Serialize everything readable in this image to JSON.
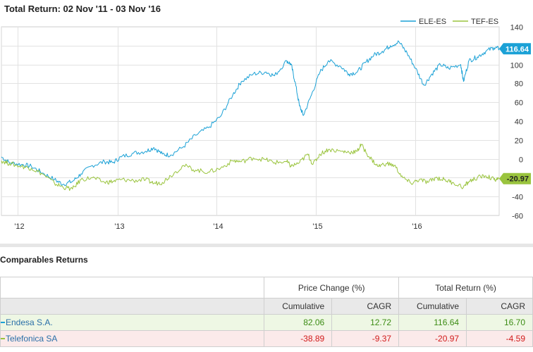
{
  "header": {
    "title": "Total Return: 02 Nov '11 - 03 Nov '16"
  },
  "chart_data": {
    "type": "line",
    "title": "Total Return: 02 Nov '11 - 03 Nov '16",
    "x_tick_labels": [
      "'12",
      "'13",
      "'14",
      "'15",
      "'16"
    ],
    "y_ticks": [
      140,
      120,
      100,
      80,
      60,
      40,
      20,
      0,
      -20,
      -40,
      -60
    ],
    "ylim": [
      -60,
      140
    ],
    "xlim": [
      "2011-11-02",
      "2016-11-03"
    ],
    "grid": true,
    "legend_position": "top-right",
    "series": [
      {
        "name": "ELE-ES",
        "color": "#1ba1d6",
        "last_value_label": "116.64",
        "points": [
          [
            "2011-11-02",
            2
          ],
          [
            "2011-12-01",
            -4
          ],
          [
            "2012-01-15",
            -6
          ],
          [
            "2012-02-20",
            -8
          ],
          [
            "2012-04-01",
            -15
          ],
          [
            "2012-05-15",
            -22
          ],
          [
            "2012-06-15",
            -27
          ],
          [
            "2012-07-20",
            -24
          ],
          [
            "2012-08-20",
            -16
          ],
          [
            "2012-10-01",
            -7
          ],
          [
            "2012-11-15",
            -3
          ],
          [
            "2012-12-15",
            -4
          ],
          [
            "2013-01-15",
            2
          ],
          [
            "2013-03-01",
            6
          ],
          [
            "2013-04-15",
            8
          ],
          [
            "2013-05-15",
            12
          ],
          [
            "2013-06-15",
            5
          ],
          [
            "2013-07-15",
            4
          ],
          [
            "2013-09-01",
            13
          ],
          [
            "2013-10-15",
            25
          ],
          [
            "2013-12-01",
            33
          ],
          [
            "2014-01-15",
            45
          ],
          [
            "2014-03-01",
            68
          ],
          [
            "2014-04-01",
            82
          ],
          [
            "2014-05-15",
            90
          ],
          [
            "2014-07-01",
            92
          ],
          [
            "2014-08-01",
            88
          ],
          [
            "2014-09-15",
            104
          ],
          [
            "2014-10-01",
            100
          ],
          [
            "2014-10-15",
            82
          ],
          [
            "2014-11-01",
            56
          ],
          [
            "2014-11-15",
            46
          ],
          [
            "2014-12-15",
            68
          ],
          [
            "2015-01-15",
            92
          ],
          [
            "2015-02-15",
            104
          ],
          [
            "2015-04-01",
            98
          ],
          [
            "2015-05-01",
            90
          ],
          [
            "2015-06-01",
            92
          ],
          [
            "2015-07-01",
            102
          ],
          [
            "2015-08-01",
            110
          ],
          [
            "2015-09-01",
            114
          ],
          [
            "2015-10-01",
            120
          ],
          [
            "2015-11-01",
            124
          ],
          [
            "2015-12-01",
            112
          ],
          [
            "2016-01-01",
            96
          ],
          [
            "2016-02-01",
            78
          ],
          [
            "2016-03-01",
            90
          ],
          [
            "2016-04-01",
            100
          ],
          [
            "2016-05-01",
            96
          ],
          [
            "2016-06-15",
            100
          ],
          [
            "2016-06-25",
            82
          ],
          [
            "2016-07-15",
            104
          ],
          [
            "2016-08-15",
            108
          ],
          [
            "2016-09-15",
            114
          ],
          [
            "2016-10-15",
            118
          ],
          [
            "2016-11-03",
            116.64
          ]
        ]
      },
      {
        "name": "TEF-ES",
        "color": "#9ac43e",
        "last_value_label": "-20.97",
        "points": [
          [
            "2011-11-02",
            -2
          ],
          [
            "2011-12-01",
            -5
          ],
          [
            "2012-01-15",
            -8
          ],
          [
            "2012-02-20",
            -10
          ],
          [
            "2012-04-01",
            -16
          ],
          [
            "2012-05-15",
            -26
          ],
          [
            "2012-06-15",
            -30
          ],
          [
            "2012-07-20",
            -32
          ],
          [
            "2012-08-20",
            -22
          ],
          [
            "2012-10-01",
            -20
          ],
          [
            "2012-11-15",
            -25
          ],
          [
            "2012-12-15",
            -24
          ],
          [
            "2013-01-15",
            -22
          ],
          [
            "2013-03-01",
            -23
          ],
          [
            "2013-04-15",
            -22
          ],
          [
            "2013-05-15",
            -26
          ],
          [
            "2013-06-15",
            -25
          ],
          [
            "2013-07-15",
            -18
          ],
          [
            "2013-09-01",
            -7
          ],
          [
            "2013-10-15",
            -12
          ],
          [
            "2013-12-01",
            -14
          ],
          [
            "2014-01-15",
            -10
          ],
          [
            "2014-03-01",
            -2
          ],
          [
            "2014-04-01",
            -3
          ],
          [
            "2014-05-15",
            1
          ],
          [
            "2014-07-01",
            -1
          ],
          [
            "2014-08-01",
            -4
          ],
          [
            "2014-09-15",
            -3
          ],
          [
            "2014-10-01",
            -8
          ],
          [
            "2014-11-01",
            -4
          ],
          [
            "2014-12-01",
            5
          ],
          [
            "2014-12-20",
            -6
          ],
          [
            "2015-01-15",
            5
          ],
          [
            "2015-02-15",
            10
          ],
          [
            "2015-04-01",
            8
          ],
          [
            "2015-05-01",
            7
          ],
          [
            "2015-06-01",
            8
          ],
          [
            "2015-06-15",
            15
          ],
          [
            "2015-07-15",
            2
          ],
          [
            "2015-08-15",
            -8
          ],
          [
            "2015-09-15",
            -5
          ],
          [
            "2015-10-15",
            -7
          ],
          [
            "2015-11-15",
            -20
          ],
          [
            "2015-12-15",
            -26
          ],
          [
            "2016-01-15",
            -22
          ],
          [
            "2016-02-15",
            -25
          ],
          [
            "2016-03-15",
            -20
          ],
          [
            "2016-04-15",
            -22
          ],
          [
            "2016-05-15",
            -25
          ],
          [
            "2016-06-25",
            -30
          ],
          [
            "2016-07-15",
            -24
          ],
          [
            "2016-08-15",
            -20
          ],
          [
            "2016-09-15",
            -18
          ],
          [
            "2016-10-15",
            -22
          ],
          [
            "2016-11-03",
            -20.97
          ]
        ]
      }
    ]
  },
  "comparables": {
    "title": "Comparables Returns",
    "group_headers": [
      "Price Change (%)",
      "Total Return (%)"
    ],
    "sub_headers": [
      "Cumulative",
      "CAGR",
      "Cumulative",
      "CAGR"
    ],
    "rows": [
      {
        "name": "Endesa S.A.",
        "color": "#1ba1d6",
        "price_cumulative": "82.06",
        "price_cagr": "12.72",
        "total_cumulative": "116.64",
        "total_cagr": "16.70"
      },
      {
        "name": "Telefonica SA",
        "color": "#9ac43e",
        "price_cumulative": "-38.89",
        "price_cagr": "-9.37",
        "total_cumulative": "-20.97",
        "total_cagr": "-4.59"
      }
    ]
  }
}
